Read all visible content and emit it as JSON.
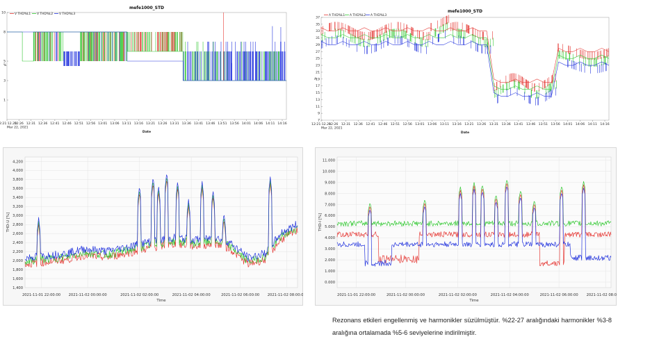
{
  "colors": {
    "red": "#e53935",
    "green": "#32c832",
    "blue": "#2233dd",
    "gray": "#888888"
  },
  "charts": [
    {
      "type": "line",
      "title": "mefe1000_STD",
      "xlabel": "Date",
      "ylabel": "%",
      "legend": [
        "V THD%L1",
        "V THD%L2",
        "V THD%L3"
      ],
      "ylim": [
        -1,
        10
      ],
      "yticks": [
        10,
        8,
        5,
        3,
        1
      ],
      "xticks": [
        "12:21:12.20",
        "12:26",
        "12:31",
        "12:36",
        "12:41",
        "12:46",
        "12:51",
        "12:56",
        "13:01",
        "13:06",
        "13:11",
        "13:16",
        "13:21",
        "13:26",
        "13:31",
        "13:36",
        "13:41",
        "13:46",
        "13:51",
        "13:56",
        "14:01",
        "14:06",
        "14:11",
        "14:16"
      ],
      "xsub": "Mar 22, 2021",
      "baselines": [
        {
          "segment": [
            0,
            0.43
          ],
          "values": [
            8,
            5
          ]
        },
        {
          "segment": [
            0.43,
            0.63
          ],
          "values": [
            8,
            6
          ]
        },
        {
          "segment": [
            0.63,
            1
          ],
          "values": [
            6,
            3
          ]
        }
      ]
    },
    {
      "type": "line",
      "title": "mefe1000_STD",
      "xlabel": "Date",
      "ylabel": "A",
      "legend": [
        "A THD%L1",
        "A THD%L2",
        "A THD%L3"
      ],
      "ylim": [
        7,
        37
      ],
      "yticks": [
        37,
        36,
        35,
        34,
        33,
        32,
        31,
        30,
        29,
        28,
        27,
        26,
        25,
        24,
        23,
        22,
        21,
        20,
        19,
        18,
        17,
        16,
        15,
        14,
        13,
        12,
        11,
        10,
        9,
        8,
        7
      ],
      "xticks": [
        "12:21:12.20",
        "12:26",
        "12:31",
        "12:36",
        "12:41",
        "12:46",
        "12:51",
        "12:56",
        "13:01",
        "13:06",
        "13:11",
        "13:16",
        "13:21",
        "13:26",
        "13:31",
        "13:36",
        "13:41",
        "13:46",
        "13:51",
        "13:56",
        "14:01",
        "14:06",
        "14:11",
        "14:16"
      ],
      "xsub": "Mar 22, 2021"
    },
    {
      "type": "line",
      "ylabel": "THD-U [%]",
      "xlabel": "Time",
      "yticks": [
        "4,200",
        "4,000",
        "3,800",
        "3,600",
        "3,400",
        "3,200",
        "3,000",
        "2,800",
        "2,600",
        "2,400",
        "2,200",
        "2,000",
        "1,800",
        "1,600",
        "1,400"
      ],
      "ylim": [
        1.4,
        4.3
      ],
      "xticks": [
        "2021-11-01 22:00:00",
        "2021-11-02 00:00:00",
        "2021-11-02 02:00:00",
        "2021-11-02 04:00:00",
        "2021-11-02 06:00:00",
        "2021-11-02 08:00:00"
      ],
      "level_profile": [
        [
          0,
          2.0
        ],
        [
          0.08,
          2.05
        ],
        [
          0.15,
          2.1
        ],
        [
          0.22,
          2.2
        ],
        [
          0.3,
          2.15
        ],
        [
          0.38,
          2.25
        ],
        [
          0.45,
          2.35
        ],
        [
          0.55,
          2.45
        ],
        [
          0.62,
          2.4
        ],
        [
          0.7,
          2.45
        ],
        [
          0.75,
          2.35
        ],
        [
          0.82,
          2.0
        ],
        [
          0.88,
          2.1
        ],
        [
          0.94,
          2.55
        ],
        [
          1.0,
          2.75
        ]
      ],
      "spikes": [
        [
          0.05,
          2.9
        ],
        [
          0.42,
          3.6
        ],
        [
          0.47,
          3.8
        ],
        [
          0.49,
          3.6
        ],
        [
          0.52,
          3.9
        ],
        [
          0.56,
          3.7
        ],
        [
          0.6,
          3.3
        ],
        [
          0.65,
          3.7
        ],
        [
          0.69,
          3.5
        ],
        [
          0.73,
          3.0
        ],
        [
          0.9,
          3.8
        ]
      ]
    },
    {
      "type": "line",
      "ylabel": "THD-I [%]",
      "xlabel": "Time",
      "yticks": [
        "11.000",
        "10.000",
        "9.000",
        "8.000",
        "7.000",
        "6.000",
        "5.000",
        "4.000",
        "3.000",
        "2.000",
        "1.000",
        "0.000"
      ],
      "ylim": [
        -0.5,
        11.3
      ],
      "xticks": [
        "2021-11-01 22:00:00",
        "2021-11-02 00:00:00",
        "2021-11-02 02:00:00",
        "2021-11-02 04:00:00",
        "2021-11-02 06:00:00",
        "2021-11-02 08:00:00"
      ],
      "green_level": 5.3,
      "red_level": 4.3,
      "blue_level": 3.4,
      "spikes": [
        [
          0.12,
          7.2
        ],
        [
          0.32,
          7.5
        ],
        [
          0.45,
          8.6
        ],
        [
          0.5,
          9.0
        ],
        [
          0.53,
          8.8
        ],
        [
          0.58,
          7.9
        ],
        [
          0.62,
          9.3
        ],
        [
          0.67,
          8.3
        ],
        [
          0.72,
          7.4
        ],
        [
          0.82,
          8.7
        ],
        [
          0.9,
          9.1
        ]
      ]
    }
  ],
  "caption": "Rezonans etkileri engellenmiş ve harmonikler süzülmüştür. %22-27 aralığındaki harmonikler %3-8 aralığına ortalamada %5-6 seviyelerine indirilmiştir."
}
